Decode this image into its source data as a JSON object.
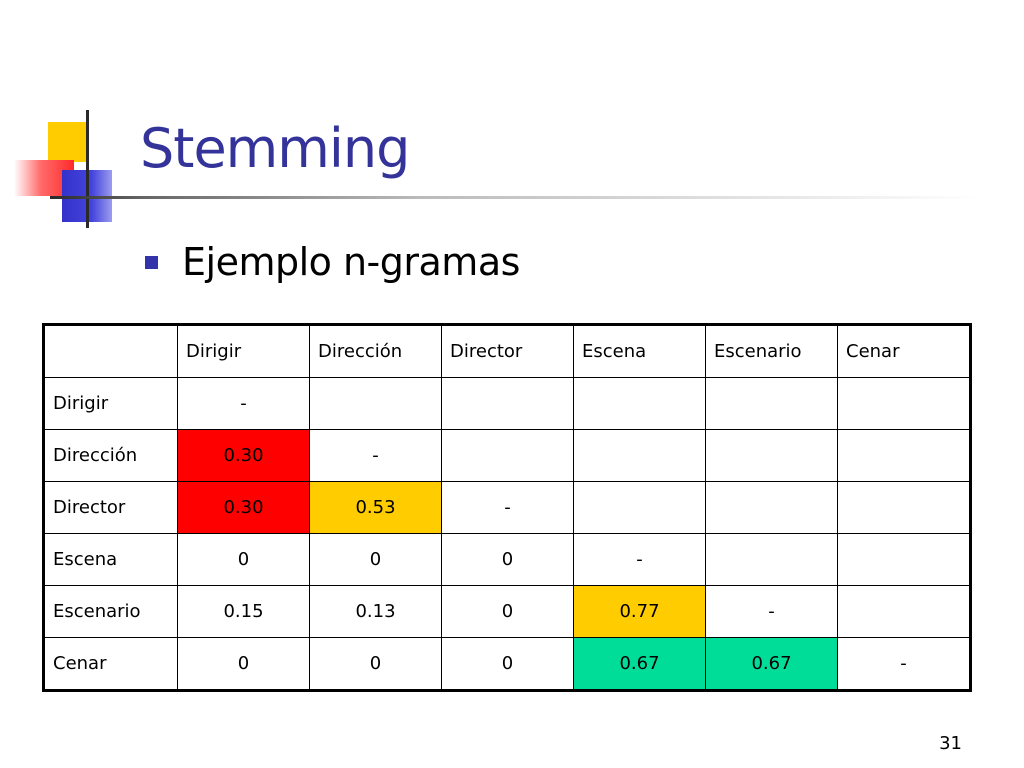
{
  "slide": {
    "title": "Stemming",
    "bullet": "Ejemplo n-gramas",
    "page_number": "31"
  },
  "colors": {
    "title": "#333399",
    "bullet": "#3333aa",
    "red": "#ff0000",
    "yellow": "#ffcc00",
    "green": "#00dd99"
  },
  "table": {
    "columns": [
      "",
      "Dirigir",
      "Dirección",
      "Director",
      "Escena",
      "Escenario",
      "Cenar"
    ],
    "rows": [
      {
        "label": "Dirigir",
        "cells": [
          {
            "v": "-",
            "bg": ""
          },
          {
            "v": "",
            "bg": ""
          },
          {
            "v": "",
            "bg": ""
          },
          {
            "v": "",
            "bg": ""
          },
          {
            "v": "",
            "bg": ""
          },
          {
            "v": "",
            "bg": ""
          }
        ]
      },
      {
        "label": "Dirección",
        "cells": [
          {
            "v": "0.30",
            "bg": "#ff0000"
          },
          {
            "v": "-",
            "bg": ""
          },
          {
            "v": "",
            "bg": ""
          },
          {
            "v": "",
            "bg": ""
          },
          {
            "v": "",
            "bg": ""
          },
          {
            "v": "",
            "bg": ""
          }
        ]
      },
      {
        "label": "Director",
        "cells": [
          {
            "v": "0.30",
            "bg": "#ff0000"
          },
          {
            "v": "0.53",
            "bg": "#ffcc00"
          },
          {
            "v": "-",
            "bg": ""
          },
          {
            "v": "",
            "bg": ""
          },
          {
            "v": "",
            "bg": ""
          },
          {
            "v": "",
            "bg": ""
          }
        ]
      },
      {
        "label": "Escena",
        "cells": [
          {
            "v": "0",
            "bg": ""
          },
          {
            "v": "0",
            "bg": ""
          },
          {
            "v": "0",
            "bg": ""
          },
          {
            "v": "-",
            "bg": ""
          },
          {
            "v": "",
            "bg": ""
          },
          {
            "v": "",
            "bg": ""
          }
        ]
      },
      {
        "label": "Escenario",
        "cells": [
          {
            "v": "0.15",
            "bg": ""
          },
          {
            "v": "0.13",
            "bg": ""
          },
          {
            "v": "0",
            "bg": ""
          },
          {
            "v": "0.77",
            "bg": "#ffcc00"
          },
          {
            "v": "-",
            "bg": ""
          },
          {
            "v": "",
            "bg": ""
          }
        ]
      },
      {
        "label": "Cenar",
        "cells": [
          {
            "v": "0",
            "bg": ""
          },
          {
            "v": "0",
            "bg": ""
          },
          {
            "v": "0",
            "bg": ""
          },
          {
            "v": "0.67",
            "bg": "#00dd99"
          },
          {
            "v": "0.67",
            "bg": "#00dd99"
          },
          {
            "v": "-",
            "bg": ""
          }
        ]
      }
    ]
  }
}
